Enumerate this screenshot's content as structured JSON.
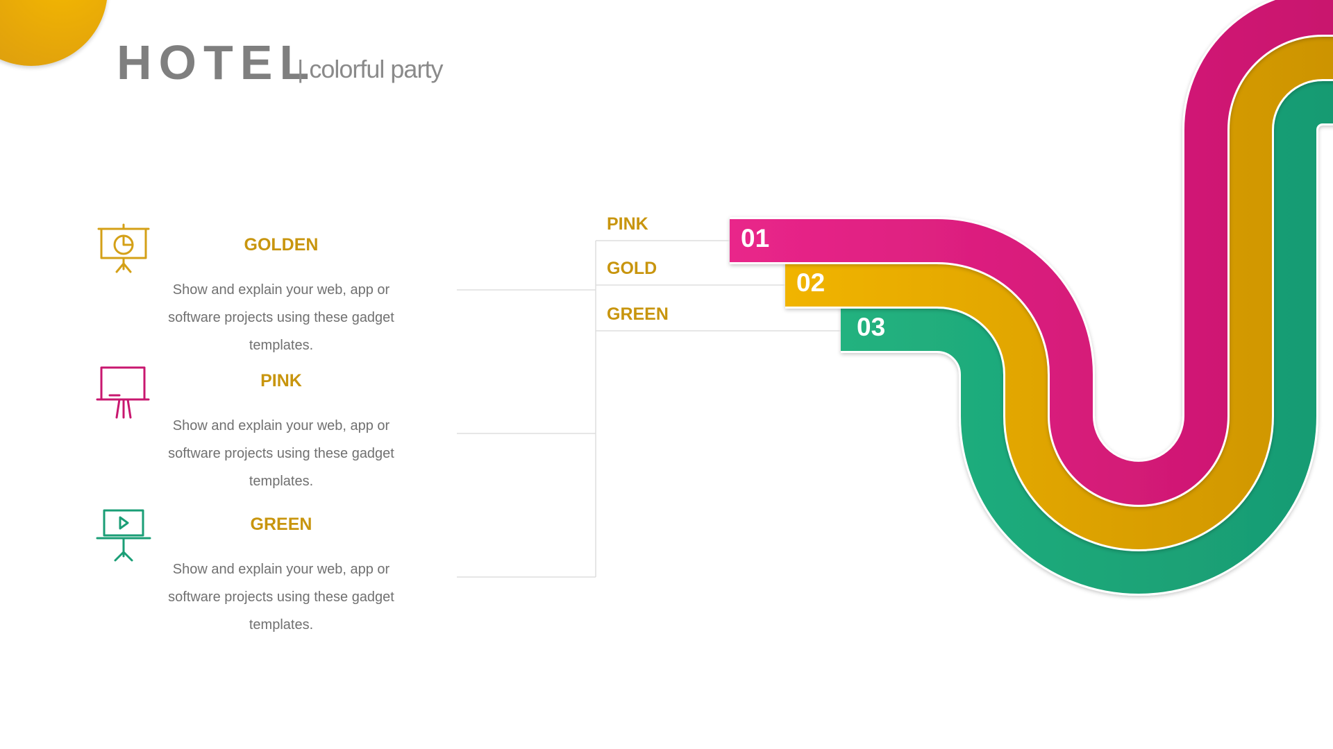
{
  "header": {
    "title": "HOTEL",
    "subtitle": "| colorful party"
  },
  "items": [
    {
      "title": "GOLDEN",
      "description_lines": [
        "Show and explain your web, app or",
        "software projects using these gadget",
        "templates."
      ],
      "icon": "presentation-chart-icon",
      "color": "#d4a017"
    },
    {
      "title": "PINK",
      "description_lines": [
        "Show and explain your web, app or",
        "software projects using these gadget",
        "templates."
      ],
      "icon": "presentation-board-icon",
      "color": "#c8176f"
    },
    {
      "title": "GREEN",
      "description_lines": [
        "Show and explain your web, app or",
        "software projects using these gadget",
        "templates."
      ],
      "icon": "presentation-play-icon",
      "color": "#1a9e76"
    }
  ],
  "ribbons": [
    {
      "label": "PINK",
      "number": "01",
      "color": "#d4147a"
    },
    {
      "label": "GOLD",
      "number": "02",
      "color": "#e0a500"
    },
    {
      "label": "GREEN",
      "number": "03",
      "color": "#1ea97c"
    }
  ],
  "colors": {
    "accent_text": "#c8950e",
    "title_gray": "#7f7f7f",
    "pink": "#d4147a",
    "gold": "#e0a500",
    "green": "#1ea97c"
  }
}
